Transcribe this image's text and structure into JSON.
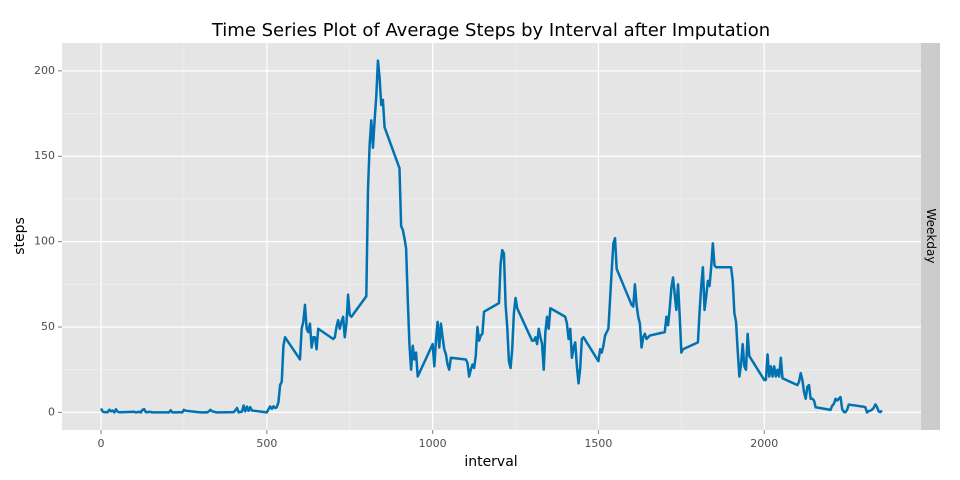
{
  "chart_data": {
    "type": "line",
    "title": "Time Series Plot of Average Steps by Interval after Imputation",
    "x_label": "interval",
    "y_label": "steps",
    "facet": "Weekday",
    "xlim": [
      -117.75,
      2472.75
    ],
    "xticks": [
      0,
      500,
      1000,
      1500,
      2000
    ],
    "ylim": [
      -10.3,
      216.3
    ],
    "yticks": [
      0,
      50,
      100,
      150,
      200
    ],
    "grid": true,
    "x": [
      0,
      5,
      10,
      15,
      20,
      25,
      30,
      35,
      40,
      45,
      50,
      55,
      100,
      105,
      110,
      115,
      120,
      125,
      130,
      135,
      140,
      145,
      150,
      155,
      200,
      205,
      210,
      215,
      220,
      225,
      230,
      235,
      240,
      245,
      250,
      255,
      300,
      305,
      310,
      315,
      320,
      325,
      330,
      335,
      340,
      345,
      350,
      355,
      400,
      405,
      410,
      415,
      420,
      425,
      430,
      435,
      440,
      445,
      450,
      455,
      500,
      505,
      510,
      515,
      520,
      525,
      530,
      535,
      540,
      545,
      550,
      555,
      600,
      605,
      610,
      615,
      620,
      625,
      630,
      635,
      640,
      645,
      650,
      655,
      700,
      705,
      710,
      715,
      720,
      725,
      730,
      735,
      740,
      745,
      750,
      755,
      800,
      805,
      810,
      815,
      820,
      825,
      830,
      835,
      840,
      845,
      850,
      855,
      900,
      905,
      910,
      915,
      920,
      925,
      930,
      935,
      940,
      945,
      950,
      955,
      1000,
      1005,
      1010,
      1015,
      1020,
      1025,
      1030,
      1035,
      1040,
      1045,
      1050,
      1055,
      1100,
      1105,
      1110,
      1115,
      1120,
      1125,
      1130,
      1135,
      1140,
      1145,
      1150,
      1155,
      1200,
      1205,
      1210,
      1215,
      1220,
      1225,
      1230,
      1235,
      1240,
      1245,
      1250,
      1255,
      1300,
      1305,
      1310,
      1315,
      1320,
      1325,
      1330,
      1335,
      1340,
      1345,
      1350,
      1355,
      1400,
      1405,
      1410,
      1415,
      1420,
      1425,
      1430,
      1435,
      1440,
      1445,
      1450,
      1455,
      1500,
      1505,
      1510,
      1515,
      1520,
      1525,
      1530,
      1535,
      1540,
      1545,
      1550,
      1555,
      1600,
      1605,
      1610,
      1615,
      1620,
      1625,
      1630,
      1635,
      1640,
      1645,
      1650,
      1655,
      1700,
      1705,
      1710,
      1715,
      1720,
      1725,
      1730,
      1735,
      1740,
      1745,
      1750,
      1755,
      1800,
      1805,
      1810,
      1815,
      1820,
      1825,
      1830,
      1835,
      1840,
      1845,
      1850,
      1855,
      1900,
      1905,
      1910,
      1915,
      1920,
      1925,
      1930,
      1935,
      1940,
      1945,
      1950,
      1955,
      2000,
      2005,
      2010,
      2015,
      2020,
      2025,
      2030,
      2035,
      2040,
      2045,
      2050,
      2055,
      2100,
      2105,
      2110,
      2115,
      2120,
      2125,
      2130,
      2135,
      2140,
      2145,
      2150,
      2155,
      2200,
      2205,
      2210,
      2215,
      2220,
      2225,
      2230,
      2235,
      2240,
      2245,
      2250,
      2255,
      2300,
      2305,
      2310,
      2315,
      2320,
      2325,
      2330,
      2335,
      2340,
      2345,
      2350,
      2355
    ],
    "series": [
      {
        "name": "Weekday",
        "color": "#0072b2",
        "values": [
          2.3,
          0.5,
          0.2,
          0.2,
          0.1,
          1.6,
          0.6,
          1.1,
          0,
          1.8,
          0.4,
          0.1,
          0.4,
          0,
          0.2,
          0.4,
          0,
          1.5,
          1.9,
          0.2,
          0.2,
          0.3,
          0.3,
          0,
          0,
          0,
          1.3,
          0,
          0,
          0.1,
          0,
          0.2,
          0,
          0,
          1.5,
          1,
          0,
          0,
          0,
          0,
          0,
          0.6,
          1.5,
          0.6,
          0.5,
          0.1,
          0,
          0,
          0.2,
          1.2,
          2.6,
          0,
          0.3,
          0.4,
          4,
          0.6,
          3.4,
          0.9,
          3.1,
          1.1,
          0,
          1.9,
          3.5,
          2.1,
          3.6,
          2.6,
          3,
          6,
          16,
          18,
          39,
          44,
          31,
          49,
          53,
          63,
          49,
          47,
          52,
          38,
          44,
          44,
          37,
          49,
          43,
          44,
          50,
          54,
          49,
          53,
          56,
          44,
          52,
          69,
          57,
          56,
          68,
          130,
          157,
          171,
          155,
          171,
          185,
          206,
          196,
          180,
          183,
          167,
          143,
          109,
          107,
          102,
          96,
          66,
          40,
          25,
          39,
          31,
          35,
          21,
          40,
          27,
          42,
          53,
          38,
          52,
          44,
          37,
          34,
          28,
          25,
          32,
          31,
          29,
          21,
          25,
          28,
          26,
          33,
          50,
          42,
          45,
          46,
          59,
          64,
          87,
          95,
          93,
          63,
          50,
          30,
          26,
          37,
          58,
          67,
          61,
          42,
          42,
          44,
          40,
          49,
          44,
          40,
          25,
          47,
          56,
          49,
          61,
          56,
          52,
          43,
          49,
          32,
          38,
          41,
          27,
          17,
          26,
          43,
          44,
          30,
          37,
          35,
          39,
          45,
          47,
          49,
          66,
          83,
          99,
          102,
          84,
          63,
          62,
          75,
          63,
          56,
          52,
          38,
          44,
          46,
          43,
          44,
          45,
          47,
          56,
          51,
          61,
          73,
          79,
          69,
          60,
          75,
          57,
          35,
          37,
          41,
          59,
          74,
          85,
          60,
          68,
          77,
          74,
          85,
          99,
          86,
          85,
          85,
          77,
          58,
          53,
          36,
          21,
          28,
          40,
          27,
          25,
          46,
          33,
          19,
          19,
          34,
          21,
          27,
          21,
          27,
          21,
          25,
          21,
          32,
          20,
          16,
          18,
          23,
          19,
          12,
          8,
          15,
          16,
          8,
          8,
          7,
          3,
          1.5,
          4,
          5,
          8,
          7,
          8,
          9,
          2,
          0.3,
          0.1,
          1.6,
          4.6,
          3.3,
          3,
          0,
          0.8,
          1,
          1.6,
          2.6,
          4.7,
          3.3,
          0.6,
          0.2,
          1.1
        ]
      }
    ]
  }
}
